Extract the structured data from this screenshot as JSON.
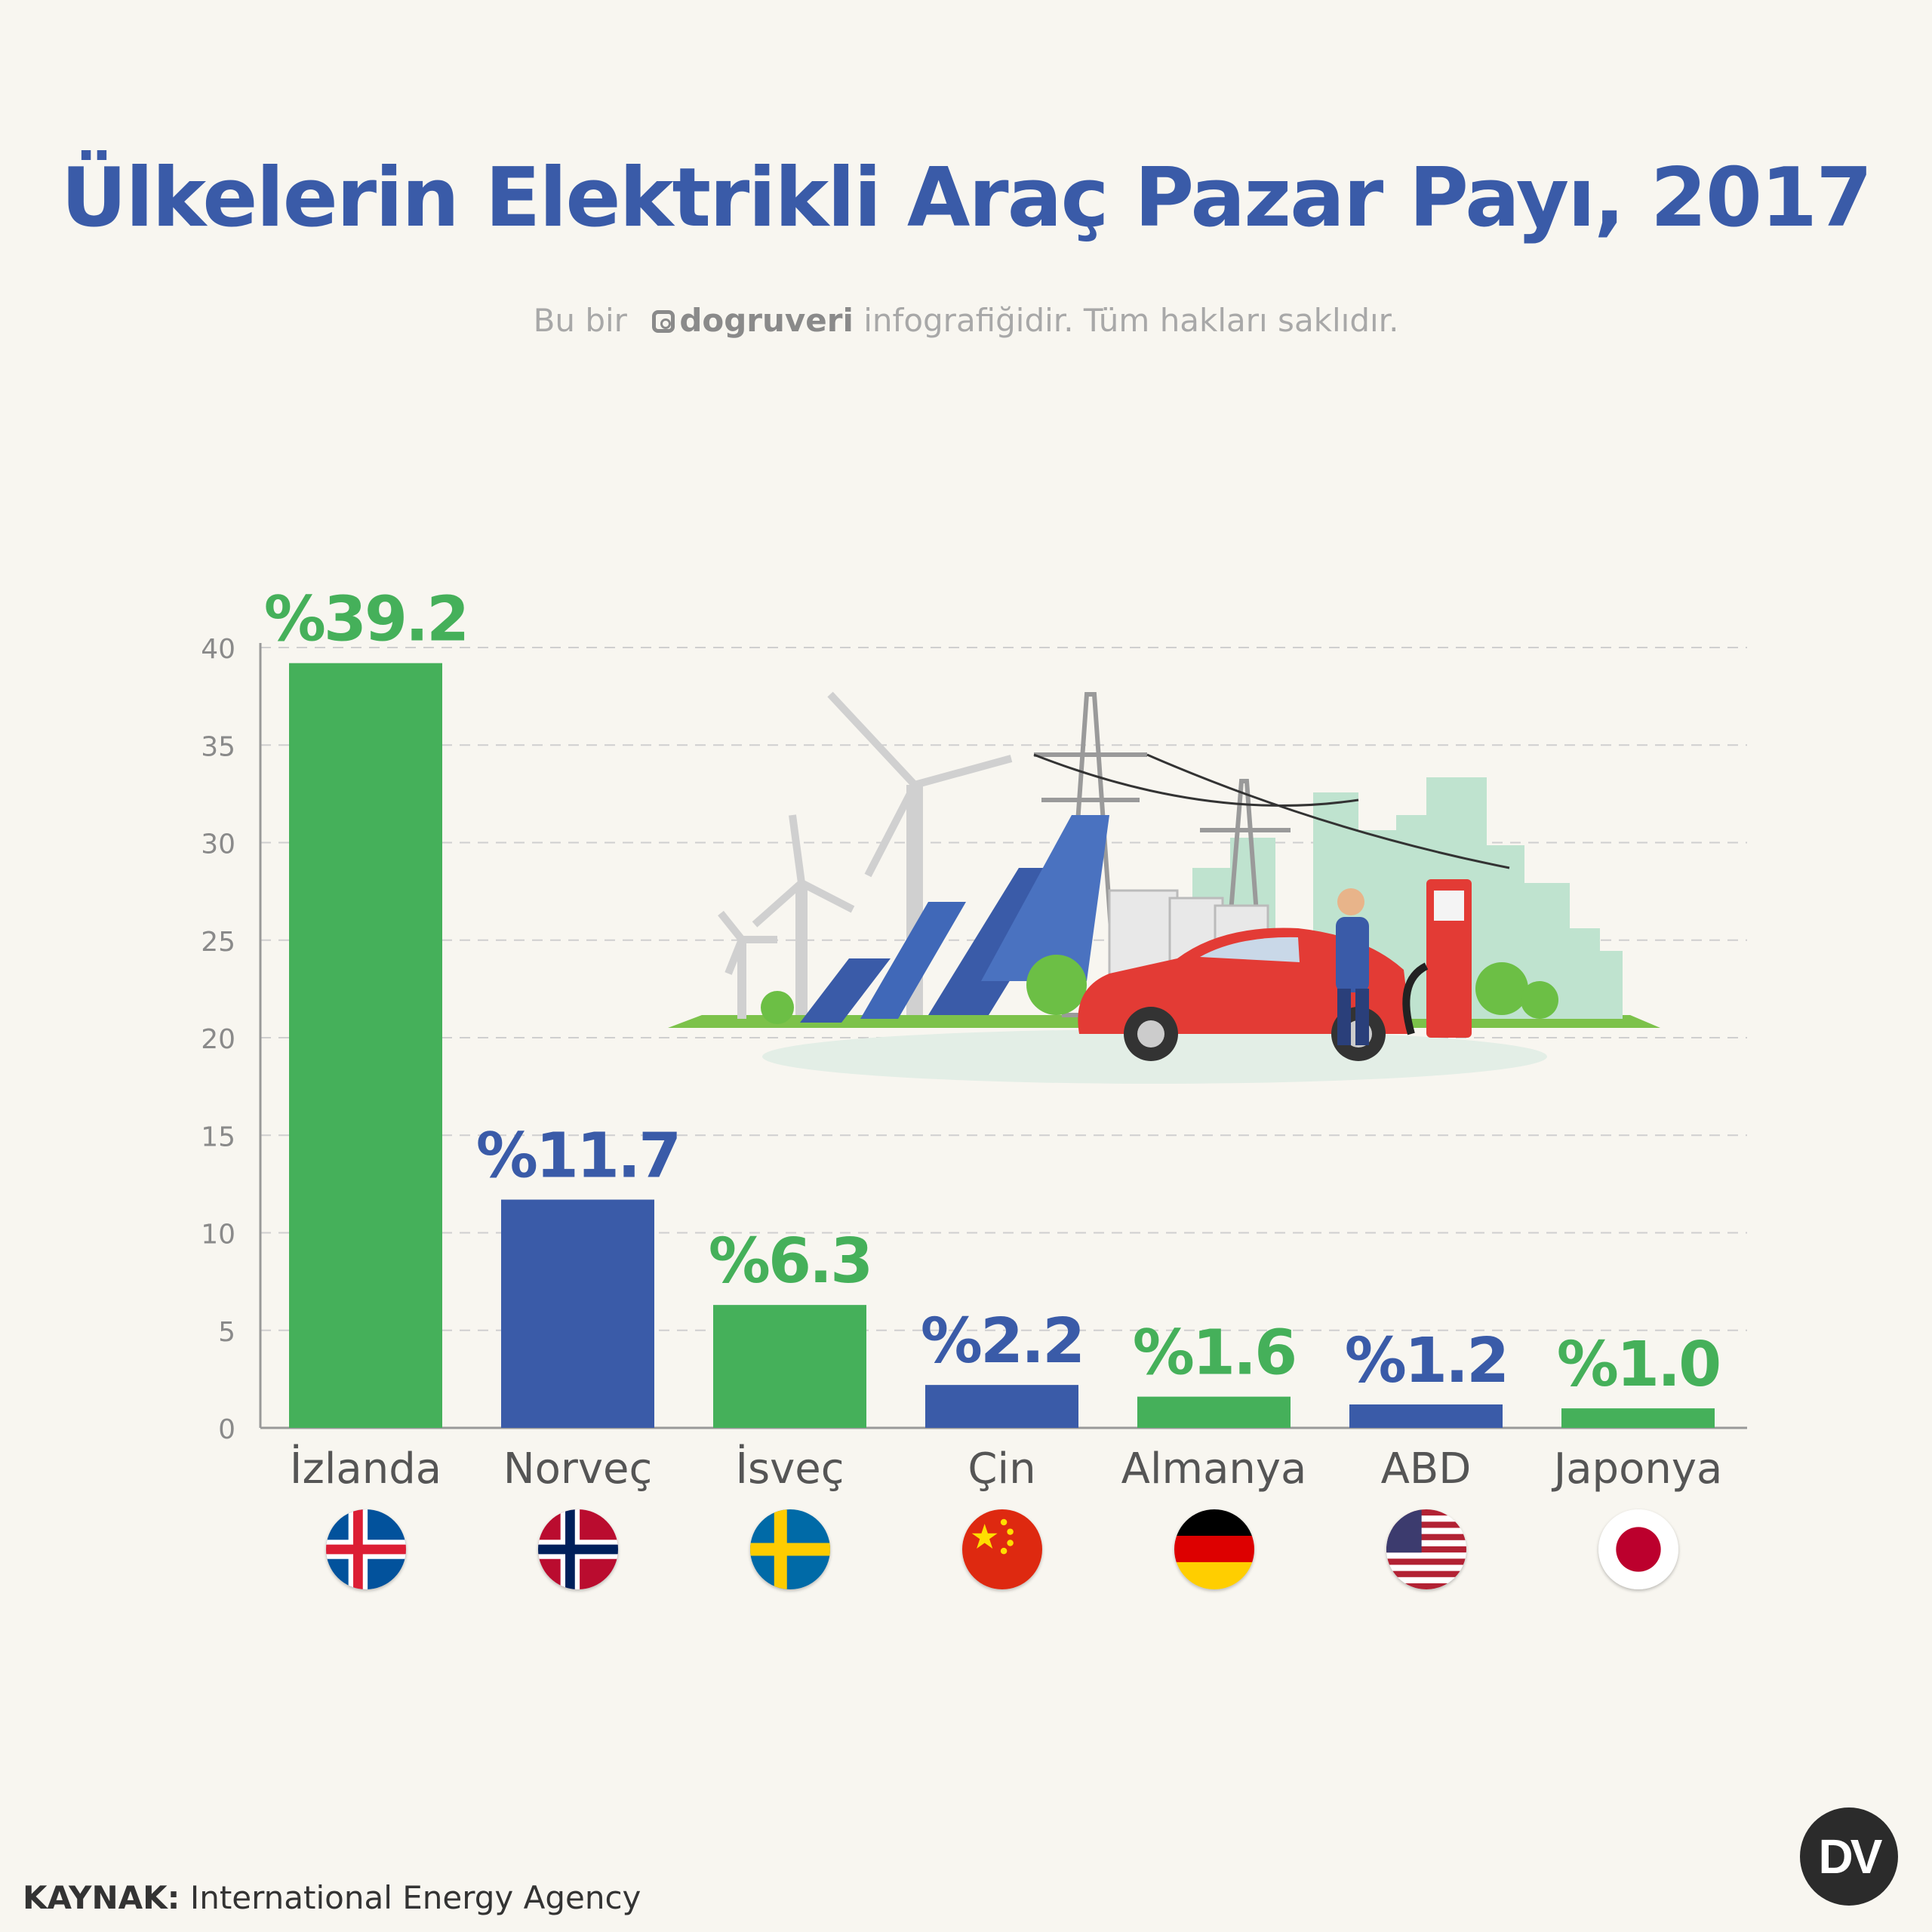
{
  "header": {
    "title": "Ülkelerin Elektrikli Araç Pazar Payı, 2017",
    "credit_prefix": "Bu bir",
    "credit_brand": "dogruveri",
    "credit_suffix": "infografiğidir. Tüm hakları saklıdır."
  },
  "footer": {
    "source_label": "KAYNAK:",
    "source_value": "International Energy Agency",
    "logo_text": "DV"
  },
  "colors": {
    "green": "#45b05a",
    "blue": "#3a5ba8",
    "axis": "#999999",
    "grid": "#cfcfcf"
  },
  "chart_data": {
    "type": "bar",
    "categories": [
      "İzlanda",
      "Norveç",
      "İsveç",
      "Çin",
      "Almanya",
      "ABD",
      "Japonya"
    ],
    "values": [
      39.2,
      11.7,
      6.3,
      2.2,
      1.6,
      1.2,
      1.0
    ],
    "value_labels": [
      "%39.2",
      "%11.7",
      "%6.3",
      "%2.2",
      "%1.6",
      "%1.2",
      "%1.0"
    ],
    "bar_colors": [
      "#45b05a",
      "#3a5ba8",
      "#45b05a",
      "#3a5ba8",
      "#45b05a",
      "#3a5ba8",
      "#45b05a"
    ],
    "yticks": [
      0,
      5,
      10,
      15,
      20,
      25,
      30,
      35,
      40
    ],
    "ylim": [
      0,
      40
    ],
    "grid": true,
    "flags": [
      "iceland-flag-icon",
      "norway-flag-icon",
      "sweden-flag-icon",
      "china-flag-icon",
      "germany-flag-icon",
      "usa-flag-icon",
      "japan-flag-icon"
    ],
    "illustration": "electric-car-charging-illustration"
  }
}
